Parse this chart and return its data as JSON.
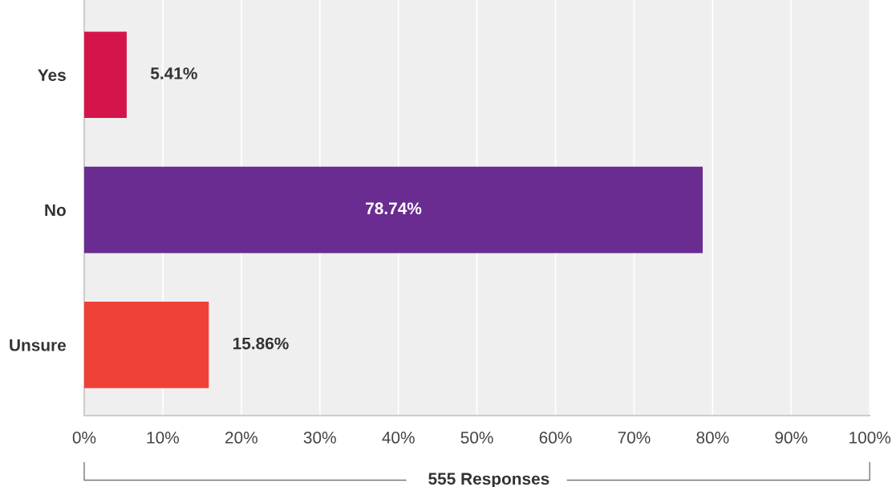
{
  "chart_data": {
    "type": "bar",
    "orientation": "horizontal",
    "categories": [
      "Yes",
      "No",
      "Unsure"
    ],
    "values": [
      5.41,
      78.74,
      15.86
    ],
    "colors": [
      "#d4144a",
      "#6a2c91",
      "#ef4136"
    ],
    "value_labels": [
      "5.41%",
      "78.74%",
      "15.86%"
    ],
    "xlabel": "555 Responses",
    "xlim": [
      0,
      100
    ],
    "xticks": [
      {
        "value": 0,
        "label": "0%"
      },
      {
        "value": 10,
        "label": "10%"
      },
      {
        "value": 20,
        "label": "20%"
      },
      {
        "value": 30,
        "label": "30%"
      },
      {
        "value": 40,
        "label": "40%"
      },
      {
        "value": 50,
        "label": "50%"
      },
      {
        "value": 60,
        "label": "60%"
      },
      {
        "value": 70,
        "label": "70%"
      },
      {
        "value": 80,
        "label": "80%"
      },
      {
        "value": 90,
        "label": "90%"
      },
      {
        "value": 100,
        "label": "100%"
      }
    ],
    "grid": "x"
  }
}
